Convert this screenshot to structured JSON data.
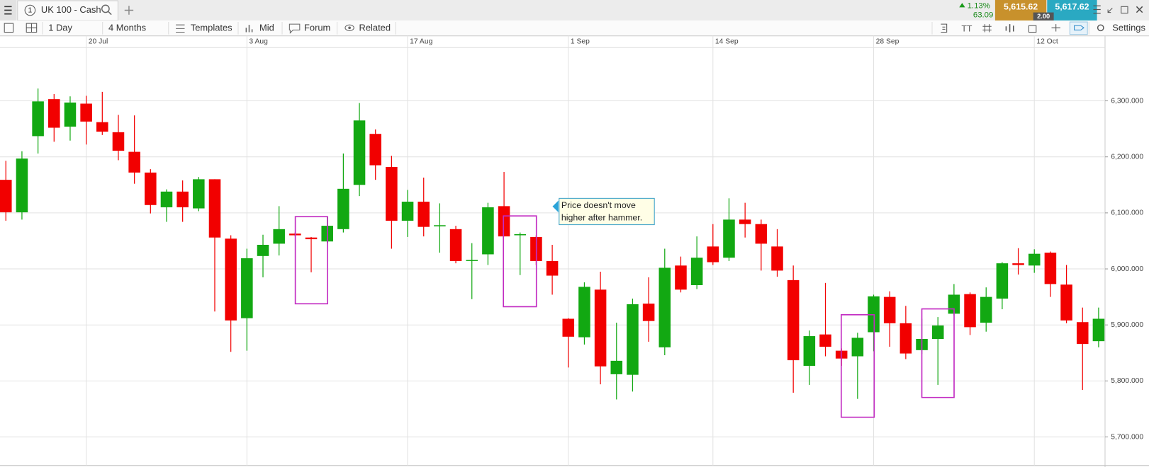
{
  "toolbar": {
    "tab_number": "1",
    "instrument": "UK 100 - Cash",
    "change_percent": "1.13%",
    "change": "63.09",
    "sell": "5,615.62",
    "buy": "5,617.62",
    "spread": "2.00",
    "interval": "1 Day",
    "range": "4 Months",
    "templates": "Templates",
    "price_type": "Mid",
    "forum": "Forum",
    "related": "Related",
    "settings": "Settings"
  },
  "chart_data": {
    "type": "candlestick",
    "categories": [
      null,
      null,
      null,
      null,
      null,
      "20 Jul",
      null,
      null,
      null,
      null,
      null,
      null,
      null,
      null,
      null,
      "3 Aug",
      null,
      null,
      null,
      null,
      null,
      null,
      null,
      null,
      null,
      "17 Aug",
      null,
      null,
      null,
      null,
      null,
      null,
      null,
      null,
      null,
      "1 Sep",
      null,
      null,
      null,
      null,
      null,
      null,
      null,
      null,
      "14 Sep",
      null,
      null,
      null,
      null,
      null,
      null,
      null,
      null,
      null,
      "28 Sep",
      null,
      null,
      null,
      null,
      null,
      null,
      null,
      null,
      null,
      "12 Oct",
      null,
      null,
      null,
      null
    ],
    "open": [
      6159,
      6101,
      6237,
      6303,
      6254,
      6295,
      6262,
      6244,
      6209,
      6172,
      6110,
      6138,
      6108,
      6160,
      6054,
      5912,
      6023,
      6045,
      6063,
      6056,
      6049,
      6071,
      6150,
      6241,
      6182,
      6086,
      6120,
      6077,
      6071,
      6015,
      6026,
      6112,
      6061,
      6057,
      6014,
      5911,
      5878,
      5963,
      5812,
      5811,
      5938,
      5860,
      6006,
      5971,
      6040,
      6020,
      6088,
      6080,
      6040,
      5980,
      5827,
      5883,
      5854,
      5844,
      5887,
      5950,
      5903,
      5855,
      5875,
      5920,
      5955,
      5904,
      5947,
      6010,
      6006,
      6029,
      5972,
      5905,
      5871
    ],
    "high": [
      6193,
      6210,
      6322,
      6312,
      6308,
      6309,
      6316,
      6275,
      6274,
      6178,
      6142,
      6158,
      6164,
      6160,
      6060,
      6036,
      6061,
      6112,
      6065,
      6057,
      6094,
      6206,
      6296,
      6249,
      6202,
      6141,
      6163,
      6117,
      6077,
      6046,
      6118,
      6173,
      6065,
      6060,
      6043,
      5912,
      5976,
      5995,
      5904,
      5947,
      5985,
      6036,
      6022,
      6058,
      6080,
      6126,
      6118,
      6088,
      6071,
      6006,
      5890,
      5975,
      5858,
      5886,
      5954,
      5960,
      5934,
      5911,
      5914,
      5973,
      5958,
      5967,
      6012,
      6037,
      6035,
      6031,
      6007,
      5931,
      5931
    ],
    "low": [
      6086,
      6088,
      6206,
      6227,
      6229,
      6222,
      6239,
      6194,
      6152,
      6099,
      6084,
      6084,
      6103,
      5924,
      5852,
      5854,
      5985,
      6024,
      6058,
      5994,
      6046,
      6065,
      6130,
      6159,
      6036,
      6057,
      6058,
      6029,
      6010,
      5946,
      6007,
      6058,
      5989,
      6007,
      5954,
      5824,
      5865,
      5794,
      5767,
      5781,
      5870,
      5846,
      5958,
      5964,
      6007,
      6014,
      6056,
      5997,
      5986,
      5779,
      5793,
      5844,
      5827,
      5768,
      5853,
      5861,
      5839,
      5848,
      5793,
      5917,
      5882,
      5888,
      5928,
      5990,
      5993,
      5950,
      5903,
      5784,
      5860
    ],
    "close": [
      6101,
      6197,
      6299,
      6252,
      6297,
      6263,
      6245,
      6211,
      6172,
      6114,
      6138,
      6110,
      6160,
      6056,
      5908,
      6019,
      6043,
      6071,
      6060,
      6053,
      6077,
      6143,
      6265,
      6185,
      6086,
      6120,
      6075,
      6078,
      6014,
      6016,
      6110,
      6058,
      6062,
      6014,
      5988,
      5879,
      5968,
      5826,
      5836,
      5937,
      5907,
      6002,
      5963,
      6020,
      6012,
      6088,
      6080,
      6045,
      5997,
      5837,
      5880,
      5861,
      5840,
      5877,
      5951,
      5903,
      5849,
      5875,
      5899,
      5954,
      5896,
      5950,
      6010,
      6007,
      6027,
      5973,
      5908,
      5866,
      5911
    ],
    "up_color": "#12a812",
    "down_color": "#f20000",
    "ylim": [
      5649,
      6399
    ],
    "yticks": [
      {
        "value": 5700,
        "label": "5,700.000"
      },
      {
        "value": 5800,
        "label": "5,800.000"
      },
      {
        "value": 5900,
        "label": "5,900.000"
      },
      {
        "value": 6000,
        "label": "6,000.000"
      },
      {
        "value": 6100,
        "label": "6,100.000"
      },
      {
        "value": 6200,
        "label": "6,200.000"
      },
      {
        "value": 6300,
        "label": "6,300.000"
      }
    ],
    "grid": true,
    "annotation": [
      "Price doesn't move",
      "higher after hammer."
    ]
  }
}
